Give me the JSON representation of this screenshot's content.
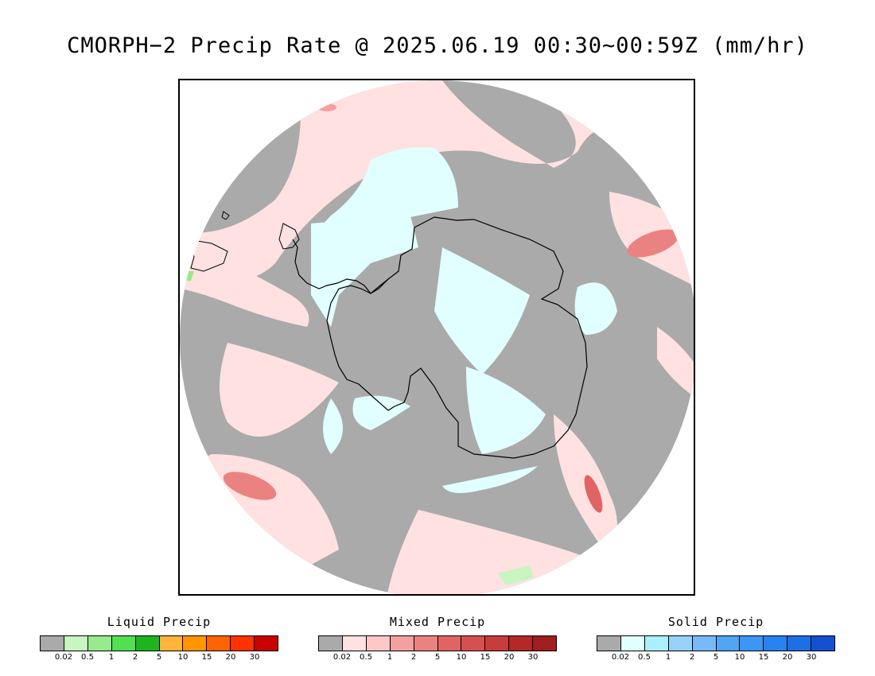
{
  "title": "CMORPH−2 Precip Rate @ 2025.06.19 00:30~00:59Z (mm/hr)",
  "map": {
    "projection": "south-polar-stereographic",
    "background_color": "#aaaaaa",
    "continent": "Antarctica"
  },
  "legends": [
    {
      "title": "Liquid Precip",
      "colors": [
        "#aaaaaa",
        "#c8f5c0",
        "#96eb8c",
        "#50e050",
        "#1eb41e",
        "#ffb43c",
        "#ff9600",
        "#ff6400",
        "#ff3200",
        "#c80000"
      ],
      "labels": [
        "0.02",
        "0.5",
        "1",
        "2",
        "5",
        "10",
        "15",
        "20",
        "30"
      ]
    },
    {
      "title": "Mixed Precip",
      "colors": [
        "#aaaaaa",
        "#ffe1e1",
        "#ffc8c8",
        "#f5a0a0",
        "#eb8282",
        "#e16464",
        "#d75050",
        "#c83c3c",
        "#b42828",
        "#a01e1e"
      ],
      "labels": [
        "0.02",
        "0.5",
        "1",
        "2",
        "5",
        "10",
        "15",
        "20",
        "30"
      ]
    },
    {
      "title": "Solid Precip",
      "colors": [
        "#aaaaaa",
        "#e1ffff",
        "#aaf0ff",
        "#96d2fa",
        "#78b9fa",
        "#50a5f5",
        "#3c96f5",
        "#2882f0",
        "#1e6ee6",
        "#1450d2"
      ],
      "labels": [
        "0.02",
        "0.5",
        "1",
        "2",
        "5",
        "10",
        "15",
        "20",
        "30"
      ]
    }
  ]
}
